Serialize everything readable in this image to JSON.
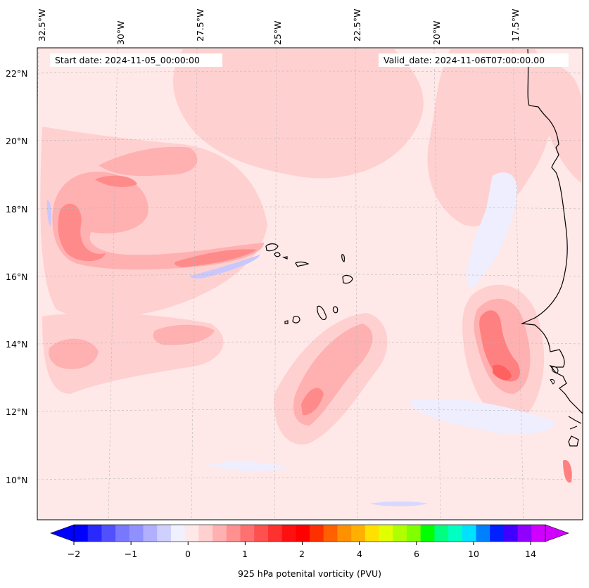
{
  "header": {
    "start_date": "Start date: 2024-11-05_00:00:00",
    "valid_date": "Valid_date: 2024-11-06T07:00:00.00"
  },
  "axes": {
    "lon_labels": [
      "32.5°W",
      "30°W",
      "27.5°W",
      "25°W",
      "22.5°W",
      "20°W",
      "17.5°W"
    ],
    "lat_labels": [
      "22°N",
      "20°N",
      "18°N",
      "16°N",
      "14°N",
      "12°N",
      "10°N"
    ]
  },
  "colorbar": {
    "title": "925 hPa potenital vorticity (PVU)",
    "tick_labels": [
      "−2",
      "−1",
      "0",
      "1",
      "2",
      "4",
      "6",
      "10",
      "14"
    ],
    "colors": [
      "#0000ff",
      "#2828ff",
      "#5050ff",
      "#7878ff",
      "#9090ff",
      "#b0b0ff",
      "#d0d0ff",
      "#f0f0ff",
      "#ffe8e8",
      "#ffd0d0",
      "#ffb0b0",
      "#ff9090",
      "#ff7070",
      "#ff5050",
      "#ff3030",
      "#ff1010",
      "#ff0000",
      "#ff3000",
      "#ff6000",
      "#ff9000",
      "#ffb000",
      "#ffe000",
      "#e0ff00",
      "#b0ff00",
      "#80ff00",
      "#00ff00",
      "#00ff80",
      "#00ffc0",
      "#00e0ff",
      "#0080ff",
      "#0020ff",
      "#4000ff",
      "#9000ff",
      "#d000ff"
    ]
  },
  "chart_data": {
    "type": "heatmap",
    "title": "925 hPa potenital vorticity (PVU)",
    "xlim": [
      -33.0,
      -15.5
    ],
    "ylim": [
      8.8,
      22.8
    ],
    "levels": [
      -2,
      -1,
      0,
      1,
      2,
      4,
      6,
      10,
      14
    ],
    "features": [
      {
        "name": "background",
        "value": 0.1
      },
      {
        "name": "western-loop",
        "value": 1.2
      },
      {
        "name": "band-17N",
        "value": 0.9
      },
      {
        "name": "southwest-band",
        "value": 0.6
      },
      {
        "name": "central-plume-13N",
        "value": 0.8
      },
      {
        "name": "coastal-max-13N",
        "value": 1.5
      },
      {
        "name": "negative-strip-16N",
        "value": -0.3
      }
    ]
  }
}
